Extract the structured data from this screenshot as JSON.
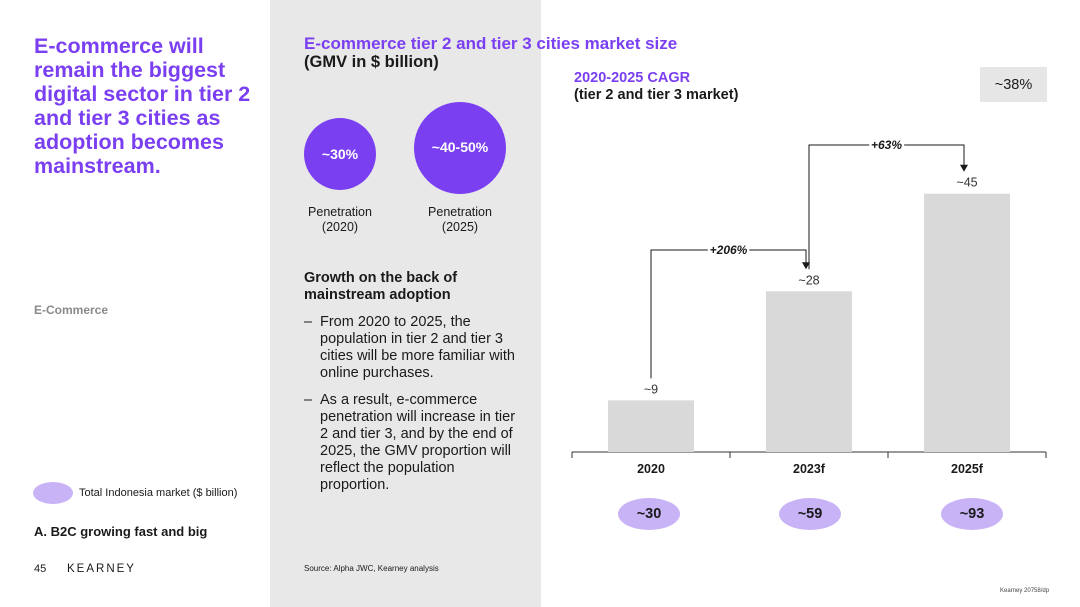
{
  "left": {
    "headline": "E-commerce will remain the biggest digital sector in tier 2 and tier 3 cities as adoption becomes mainstream.",
    "section_label": "E-Commerce",
    "legend_text": "Total Indonesia market ($ billion)",
    "footer_title": "A. B2C growing fast and big",
    "page_number": "45",
    "logo": "KEARNEY"
  },
  "middle": {
    "title": "E-commerce tier 2 and tier 3 cities market size",
    "subtitle": "(GMV in $ billion)",
    "penetration": [
      {
        "value": "~30%",
        "label": "Penetration (2020)"
      },
      {
        "value": "~40-50%",
        "label": "Penetration (2025)"
      }
    ],
    "growth_heading": "Growth on the back of mainstream adoption",
    "bullets": [
      "From 2020 to 2025, the population in tier 2 and tier 3 cities will be more familiar with online purchases.",
      "As a result, e-commerce penetration will increase in tier 2 and tier 3, and by the end of 2025, the GMV proportion will reflect the population proportion."
    ],
    "bullet_dash": "–",
    "source": "Source: Alpha JWC, Kearney analysis"
  },
  "right": {
    "cagr_line1": "2020-2025 CAGR",
    "cagr_line2": "(tier 2 and tier 3 market)",
    "cagr_value": "~38%",
    "doc_ref": "Kearney 20758/dp"
  },
  "colors": {
    "accent": "#7b3ff2",
    "light_accent": "#c9b3f7",
    "bar": "#d9d9d9",
    "mid_panel": "#e8e8e8"
  },
  "chart_data": {
    "type": "bar",
    "categories": [
      "2020",
      "2023f",
      "2025f"
    ],
    "values": [
      9,
      28,
      45
    ],
    "value_labels": [
      "~9",
      "~28",
      "~45"
    ],
    "totals": [
      "~30",
      "~59",
      "~93"
    ],
    "growth_arrows": [
      {
        "from": 0,
        "to": 1,
        "label": "+206%"
      },
      {
        "from": 1,
        "to": 2,
        "label": "+63%"
      }
    ],
    "ylim": [
      0,
      50
    ]
  }
}
